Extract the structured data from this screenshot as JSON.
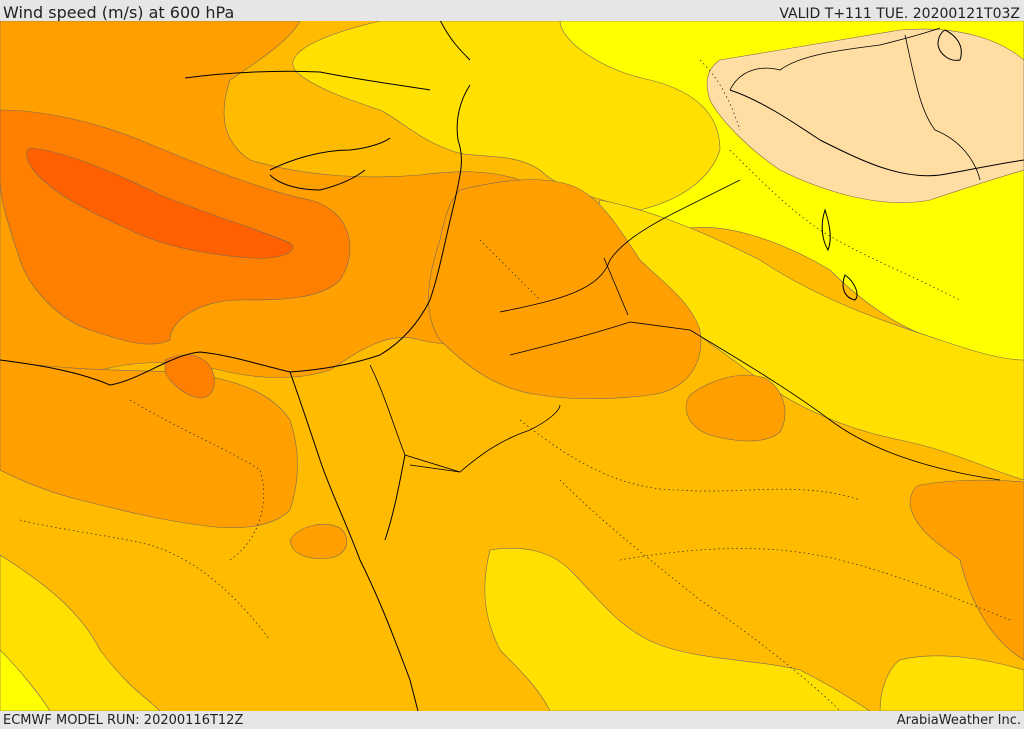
{
  "header": {
    "title": "Wind speed (m/s) at 600 hPa",
    "valid": "VALID T+111 TUE. 20200121T03Z"
  },
  "footer": {
    "model_run": "ECMWF MODEL RUN: 20200116T12Z",
    "credit": "ArabiaWeather Inc."
  },
  "map": {
    "variable": "wind speed",
    "level": "600 hPa",
    "colors": {
      "light": "#ffdda3",
      "yellow": "#ffff00",
      "gold": "#ffe000",
      "amber": "#ffbb00",
      "orange": "#ff9f00",
      "dark_orange": "#ff8000",
      "red_orange": "#ff6000"
    }
  }
}
